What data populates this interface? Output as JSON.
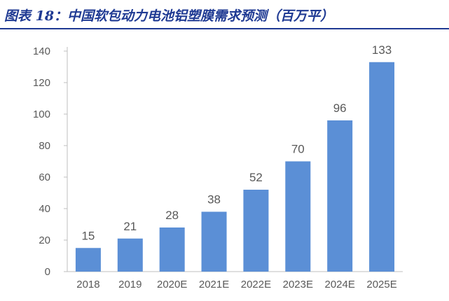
{
  "figure": {
    "title": "图表 18：中国软包动力电池铝塑膜需求预测（百万平）"
  },
  "colors": {
    "bar": "#5b8fd6",
    "title": "#1f3a93",
    "axis_text": "#595959",
    "axis_line": "#bfbfbf"
  },
  "chart_data": {
    "type": "bar",
    "title": "",
    "xlabel": "",
    "ylabel": "",
    "categories": [
      "2018",
      "2019",
      "2020E",
      "2021E",
      "2022E",
      "2023E",
      "2024E",
      "2025E"
    ],
    "values": [
      15,
      21,
      28,
      38,
      52,
      70,
      96,
      133
    ],
    "data_labels": [
      "15",
      "21",
      "28",
      "38",
      "52",
      "70",
      "96",
      "133"
    ],
    "ylim": [
      0,
      140
    ],
    "yticks": [
      0,
      20,
      40,
      60,
      80,
      100,
      120,
      140
    ],
    "grid": false,
    "legend": "none"
  }
}
